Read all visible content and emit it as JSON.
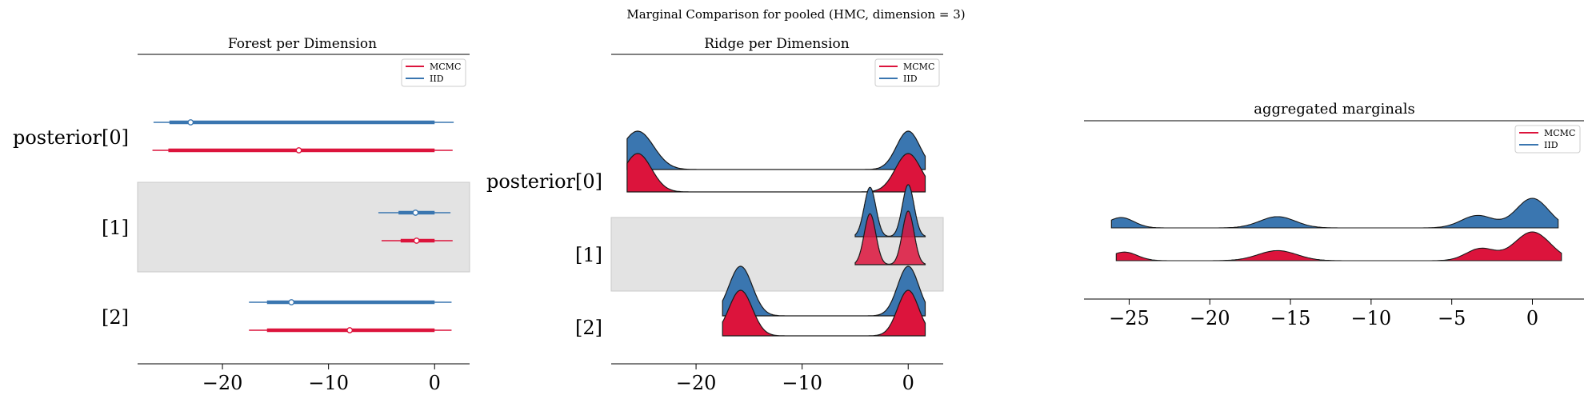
{
  "suptitle": "Marginal Comparison for pooled (HMC, dimension = 3)",
  "colors": {
    "mcmc": "#dc143c",
    "iid": "#3a76b0",
    "band": "#e3e3e3"
  },
  "chart_data": [
    {
      "type": "forest",
      "title": "Forest per Dimension",
      "ylabels": [
        "posterior[0]",
        "[1]",
        "[2]"
      ],
      "xticks": [
        -20,
        -10,
        0
      ],
      "xtick_labels": [
        "−20",
        "−10",
        "0"
      ],
      "xlim": [
        -28,
        3.3
      ],
      "legend": [
        "MCMC",
        "IID"
      ],
      "legend_position": "top-right",
      "series": [
        {
          "name": "IID",
          "intervals": [
            {
              "label": "posterior[0]",
              "hdi_low": -26.5,
              "hdi_high": 1.8,
              "iqr_low": -25.0,
              "iqr_high": 0.0,
              "mean": -23.0
            },
            {
              "label": "[1]",
              "hdi_low": -5.3,
              "hdi_high": 1.5,
              "iqr_low": -3.4,
              "iqr_high": 0.0,
              "mean": -1.8
            },
            {
              "label": "[2]",
              "hdi_low": -17.5,
              "hdi_high": 1.6,
              "iqr_low": -15.8,
              "iqr_high": 0.0,
              "mean": -13.5
            }
          ]
        },
        {
          "name": "MCMC",
          "intervals": [
            {
              "label": "posterior[0]",
              "hdi_low": -26.6,
              "hdi_high": 1.7,
              "iqr_low": -25.1,
              "iqr_high": 0.0,
              "mean": -12.8
            },
            {
              "label": "[1]",
              "hdi_low": -5.0,
              "hdi_high": 1.7,
              "iqr_low": -3.2,
              "iqr_high": 0.0,
              "mean": -1.7
            },
            {
              "label": "[2]",
              "hdi_low": -17.5,
              "hdi_high": 1.6,
              "iqr_low": -15.8,
              "iqr_high": 0.0,
              "mean": -8.0
            }
          ]
        }
      ]
    },
    {
      "type": "ridge",
      "title": "Ridge per Dimension",
      "ylabels": [
        "posterior[0]",
        "[1]",
        "[2]"
      ],
      "xticks": [
        -20,
        -10,
        0
      ],
      "xtick_labels": [
        "−20",
        "−10",
        "0"
      ],
      "xlim": [
        -28,
        3.3
      ],
      "legend": [
        "MCMC",
        "IID"
      ],
      "legend_position": "top-right",
      "series": [
        {
          "name": "IID",
          "ridges": [
            {
              "label": "posterior[0]",
              "x_range": [
                -26.5,
                1.6
              ],
              "modes": [
                [
                  -25.5,
                  1.5,
                  1.0
                ],
                [
                  0.0,
                  1.1,
                  1.0
                ]
              ]
            },
            {
              "label": "[1]",
              "x_range": [
                -5.0,
                1.6
              ],
              "modes": [
                [
                  -3.6,
                  0.55,
                  0.95
                ],
                [
                  0.0,
                  0.55,
                  1.0
                ]
              ]
            },
            {
              "label": "[2]",
              "x_range": [
                -17.5,
                1.6
              ],
              "modes": [
                [
                  -15.8,
                  1.1,
                  1.0
                ],
                [
                  0.0,
                  1.0,
                  1.0
                ]
              ]
            }
          ]
        },
        {
          "name": "MCMC",
          "ridges": [
            {
              "label": "posterior[0]",
              "x_range": [
                -26.5,
                1.6
              ],
              "modes": [
                [
                  -25.5,
                  1.3,
                  1.0
                ],
                [
                  0.0,
                  1.2,
                  1.0
                ]
              ]
            },
            {
              "label": "[1]",
              "x_range": [
                -5.0,
                1.6
              ],
              "modes": [
                [
                  -3.6,
                  0.55,
                  0.95
                ],
                [
                  0.0,
                  0.55,
                  1.0
                ]
              ]
            },
            {
              "label": "[2]",
              "x_range": [
                -17.5,
                1.6
              ],
              "modes": [
                [
                  -15.8,
                  1.1,
                  1.0
                ],
                [
                  0.0,
                  1.0,
                  1.0
                ]
              ]
            }
          ]
        }
      ]
    },
    {
      "type": "ridge",
      "title": "aggregated marginals",
      "xticks": [
        -25,
        -20,
        -15,
        -10,
        -5,
        0
      ],
      "xtick_labels": [
        "−25",
        "−20",
        "−15",
        "−10",
        "−5",
        "0"
      ],
      "xlim": [
        -27.8,
        3.2
      ],
      "legend": [
        "MCMC",
        "IID"
      ],
      "legend_position": "top-right",
      "series": [
        {
          "name": "IID",
          "x_range": [
            -26.1,
            1.6
          ],
          "modes": [
            [
              -25.5,
              0.8,
              0.35
            ],
            [
              -15.8,
              1.1,
              0.38
            ],
            [
              -3.4,
              1.0,
              0.42
            ],
            [
              0.0,
              1.0,
              1.0
            ]
          ]
        },
        {
          "name": "MCMC",
          "x_range": [
            -25.8,
            1.8
          ],
          "modes": [
            [
              -25.3,
              0.8,
              0.3
            ],
            [
              -15.8,
              1.2,
              0.35
            ],
            [
              -3.2,
              0.9,
              0.42
            ],
            [
              0.0,
              1.1,
              1.0
            ]
          ]
        }
      ]
    }
  ]
}
